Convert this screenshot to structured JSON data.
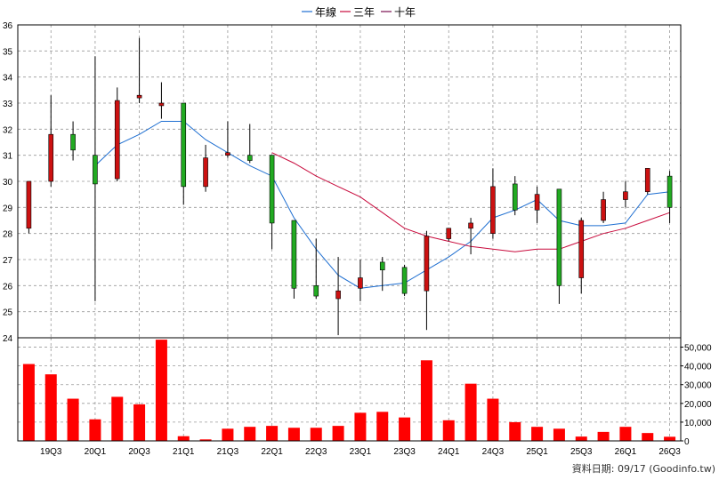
{
  "legend": [
    {
      "label": "年線",
      "color": "#1f6fd1",
      "icon": "blue-line-icon"
    },
    {
      "label": "三年",
      "color": "#c80a3c",
      "icon": "red-line-icon"
    },
    {
      "label": "十年",
      "color": "#7a0f4f",
      "icon": "purple-line-icon"
    }
  ],
  "footer": "資料日期: 09/17  (Goodinfo.tw)",
  "colors": {
    "up": "#cc1111",
    "down": "#22aa22",
    "volume": "#ff0000",
    "grid": "#999999",
    "year_line": "#1f6fd1",
    "three_year_line": "#c80a3c"
  },
  "chart_data": [
    {
      "type": "candlestick",
      "title": "",
      "ylim": [
        24,
        36
      ],
      "yticks": [
        24,
        25,
        26,
        27,
        28,
        29,
        30,
        31,
        32,
        33,
        34,
        35,
        36
      ],
      "x_tick_labels": [
        "19Q3",
        "20Q1",
        "20Q3",
        "21Q1",
        "21Q3",
        "22Q1",
        "22Q3",
        "23Q1",
        "23Q3",
        "24Q1",
        "24Q3",
        "25Q1",
        "25Q3",
        "26Q1",
        "26Q3"
      ],
      "candles": [
        {
          "open": 28.2,
          "high": 30.0,
          "low": 28.0,
          "close": 30.0
        },
        {
          "open": 30.0,
          "high": 33.3,
          "low": 29.8,
          "close": 31.8
        },
        {
          "open": 31.8,
          "high": 32.3,
          "low": 30.8,
          "close": 31.2
        },
        {
          "open": 31.0,
          "high": 34.8,
          "low": 25.4,
          "close": 29.9
        },
        {
          "open": 30.1,
          "high": 33.6,
          "low": 30.0,
          "close": 33.1
        },
        {
          "open": 33.2,
          "high": 35.5,
          "low": 33.0,
          "close": 33.3
        },
        {
          "open": 32.9,
          "high": 33.8,
          "low": 32.4,
          "close": 33.0
        },
        {
          "open": 33.0,
          "high": 33.0,
          "low": 29.1,
          "close": 29.8
        },
        {
          "open": 29.8,
          "high": 31.4,
          "low": 29.6,
          "close": 30.9
        },
        {
          "open": 31.0,
          "high": 32.3,
          "low": 30.9,
          "close": 31.1
        },
        {
          "open": 31.0,
          "high": 32.2,
          "low": 30.7,
          "close": 30.8
        },
        {
          "open": 31.0,
          "high": 31.0,
          "low": 27.4,
          "close": 28.4
        },
        {
          "open": 28.5,
          "high": 28.5,
          "low": 25.5,
          "close": 25.9
        },
        {
          "open": 26.0,
          "high": 27.8,
          "low": 25.5,
          "close": 25.6
        },
        {
          "open": 25.5,
          "high": 27.1,
          "low": 24.1,
          "close": 25.8
        },
        {
          "open": 25.9,
          "high": 27.0,
          "low": 25.4,
          "close": 26.3
        },
        {
          "open": 26.9,
          "high": 27.1,
          "low": 25.8,
          "close": 26.6
        },
        {
          "open": 26.7,
          "high": 26.8,
          "low": 25.6,
          "close": 25.7
        },
        {
          "open": 25.8,
          "high": 28.1,
          "low": 24.3,
          "close": 27.9
        },
        {
          "open": 27.8,
          "high": 28.2,
          "low": 27.7,
          "close": 28.2
        },
        {
          "open": 28.2,
          "high": 28.6,
          "low": 27.2,
          "close": 28.4
        },
        {
          "open": 28.0,
          "high": 30.5,
          "low": 27.8,
          "close": 29.8
        },
        {
          "open": 29.9,
          "high": 30.2,
          "low": 28.7,
          "close": 28.9
        },
        {
          "open": 28.9,
          "high": 29.8,
          "low": 28.4,
          "close": 29.5
        },
        {
          "open": 29.7,
          "high": 29.7,
          "low": 25.3,
          "close": 26.0
        },
        {
          "open": 26.3,
          "high": 28.6,
          "low": 25.7,
          "close": 28.5
        },
        {
          "open": 28.5,
          "high": 29.6,
          "low": 28.4,
          "close": 29.3
        },
        {
          "open": 29.3,
          "high": 30.0,
          "low": 29.0,
          "close": 29.6
        },
        {
          "open": 29.6,
          "high": 30.5,
          "low": 29.5,
          "close": 30.5
        },
        {
          "open": 30.2,
          "high": 30.4,
          "low": 28.4,
          "close": 29.0
        }
      ],
      "series": [
        {
          "name": "年線",
          "values": [
            null,
            null,
            null,
            30.6,
            31.4,
            31.8,
            32.3,
            32.3,
            31.6,
            31.1,
            30.6,
            30.2,
            28.6,
            27.4,
            26.4,
            25.9,
            26.0,
            26.1,
            26.6,
            27.1,
            27.7,
            28.6,
            28.9,
            29.3,
            28.5,
            28.3,
            28.3,
            28.4,
            29.5,
            29.6
          ]
        },
        {
          "name": "三年",
          "values": [
            null,
            null,
            null,
            null,
            null,
            null,
            null,
            null,
            null,
            null,
            null,
            31.1,
            30.7,
            30.2,
            29.8,
            29.4,
            28.8,
            28.2,
            27.9,
            27.7,
            27.5,
            27.4,
            27.3,
            27.4,
            27.4,
            27.7,
            28.0,
            28.2,
            28.5,
            28.8
          ]
        }
      ]
    },
    {
      "type": "bar",
      "title": "",
      "ylim": [
        0,
        55000
      ],
      "yticks": [
        0,
        10000,
        20000,
        30000,
        40000,
        50000
      ],
      "ytick_labels": [
        "0",
        "10,000",
        "20,000",
        "30,000",
        "40,000",
        "50,000"
      ],
      "values": [
        41000,
        35500,
        22500,
        11500,
        23500,
        19500,
        54000,
        2500,
        800,
        6500,
        7500,
        8000,
        7000,
        7000,
        8000,
        15000,
        15500,
        12500,
        43000,
        11000,
        30500,
        22500,
        10000,
        7500,
        6500,
        2300,
        4800,
        7500,
        4200,
        2200
      ]
    }
  ]
}
